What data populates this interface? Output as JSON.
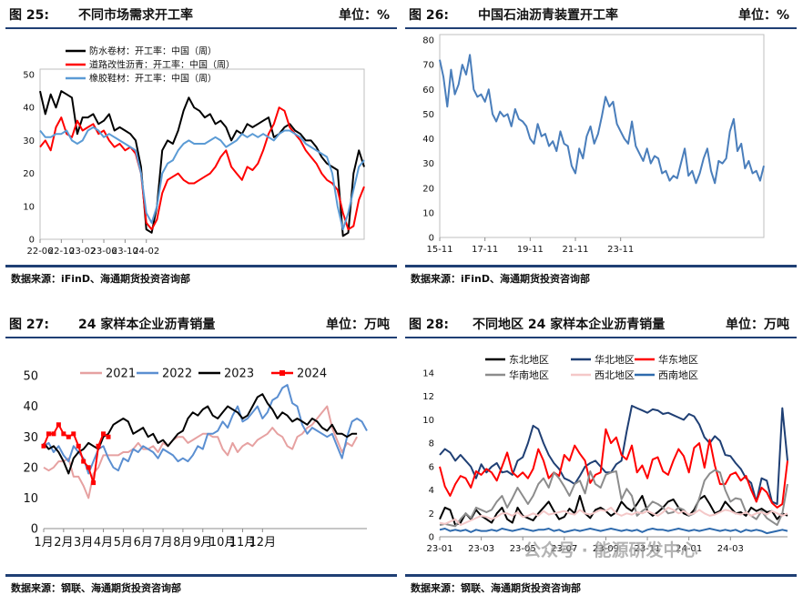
{
  "charts": [
    {
      "fig_no": "图 25:",
      "title": "不同市场需求开工率",
      "unit": "单位：%",
      "source": "数据来源：iFinD、海通期货投资咨询部"
    },
    {
      "fig_no": "图 26:",
      "title": "中国石油沥青装置开工率",
      "unit": "单位：%",
      "source": "数据来源：iFinD、海通期货投资咨询部"
    },
    {
      "fig_no": "图 27:",
      "title": "24 家样本企业沥青销量",
      "unit": "单位：万吨",
      "source": "数据来源：钢联、海通期货投资咨询部"
    },
    {
      "fig_no": "图 28:",
      "title": "不同地区 24 家样本企业沥青销量",
      "unit": "单位：万吨",
      "source": "数据来源：钢联、海通期货投资咨询部"
    }
  ],
  "watermark": "公众号 · 能源研发中心",
  "chart_data": [
    {
      "type": "line",
      "title": "不同市场需求开工率",
      "x_ticks": [
        "22-06",
        "22-10",
        "23-02",
        "23-06",
        "23-10",
        "24-02"
      ],
      "ylim": [
        0,
        50
      ],
      "y_ticks": [
        0,
        10,
        20,
        30,
        40,
        50
      ],
      "legend": "top-left",
      "x_index_per_tick": 4,
      "series": [
        {
          "name": "防水卷材：开工率：中国（周）",
          "color": "#000000",
          "values": [
            45,
            38,
            44,
            40,
            45,
            44,
            43,
            32,
            37,
            37,
            38,
            35,
            36,
            38,
            33,
            34,
            33,
            32,
            30,
            22,
            3,
            2,
            10,
            27,
            30,
            29,
            33,
            39,
            43,
            40,
            39,
            37,
            38,
            35,
            36,
            34,
            30,
            33,
            32,
            35,
            34,
            35,
            36,
            37,
            31,
            32,
            34,
            35,
            33,
            32,
            30,
            30,
            28,
            25,
            23,
            22,
            21,
            1,
            2,
            20,
            27,
            22
          ]
        },
        {
          "name": "道路改性沥青：开工率：中国（周）",
          "color": "#ff0000",
          "values": [
            28,
            30,
            27,
            34,
            37,
            32,
            31,
            36,
            33,
            34,
            35,
            32,
            33,
            30,
            28,
            29,
            27,
            28,
            26,
            20,
            5,
            3,
            6,
            14,
            18,
            19,
            20,
            18,
            17,
            17,
            18,
            19,
            20,
            22,
            25,
            27,
            22,
            20,
            18,
            22,
            21,
            23,
            27,
            32,
            35,
            40,
            39,
            34,
            32,
            30,
            27,
            25,
            23,
            20,
            18,
            17,
            15,
            8,
            3,
            4,
            12,
            16
          ]
        },
        {
          "name": "橡胶鞋材：开工率：中国（周）",
          "color": "#5b9bd5",
          "values": [
            33,
            31,
            31,
            32,
            32,
            33,
            30,
            29,
            30,
            33,
            34,
            33,
            31,
            32,
            31,
            30,
            29,
            28,
            27,
            20,
            8,
            5,
            10,
            20,
            23,
            24,
            27,
            29,
            30,
            29,
            29,
            29,
            30,
            31,
            30,
            28,
            29,
            30,
            32,
            31,
            32,
            31,
            32,
            31,
            30,
            32,
            33,
            33,
            32,
            31,
            29,
            28,
            27,
            26,
            25,
            20,
            10,
            3,
            8,
            15,
            22,
            24
          ]
        }
      ]
    },
    {
      "type": "line",
      "title": "中国石油沥青装置开工率",
      "x_ticks": [
        "15-11",
        "17-11",
        "19-11",
        "21-11",
        "23-11"
      ],
      "ylim": [
        0,
        80
      ],
      "y_ticks": [
        0,
        10,
        20,
        30,
        40,
        50,
        60,
        70,
        80
      ],
      "x_index_per_tick": 12,
      "series": [
        {
          "name": "开工率",
          "color": "#4a7ebb",
          "values": [
            72,
            65,
            53,
            68,
            58,
            62,
            70,
            66,
            74,
            60,
            57,
            58,
            55,
            60,
            50,
            47,
            51,
            49,
            50,
            45,
            52,
            48,
            47,
            45,
            40,
            38,
            46,
            41,
            42,
            37,
            39,
            35,
            43,
            38,
            37,
            29,
            26,
            36,
            32,
            41,
            45,
            38,
            42,
            49,
            57,
            53,
            55,
            46,
            43,
            40,
            38,
            47,
            37,
            34,
            31,
            36,
            30,
            33,
            32,
            26,
            27,
            23,
            25,
            24,
            30,
            36,
            25,
            27,
            22,
            26,
            32,
            36,
            27,
            22,
            31,
            30,
            32,
            43,
            48,
            35,
            38,
            28,
            31,
            26,
            27,
            23,
            29
          ]
        }
      ]
    },
    {
      "type": "line",
      "title": "24 家样本企业沥青销量",
      "x_ticks": [
        "1月",
        "2月",
        "3月",
        "4月",
        "5月",
        "6月",
        "7月",
        "8月",
        "9月",
        "10月",
        "11月",
        "12月"
      ],
      "ylim": [
        0,
        50
      ],
      "y_ticks": [
        0,
        10,
        20,
        30,
        40,
        50
      ],
      "legend": "top",
      "x_index_per_tick": 4,
      "series": [
        {
          "name": "2021",
          "color": "#e6a1a1",
          "values": [
            20,
            19,
            20,
            22,
            22,
            23,
            17,
            17,
            14,
            10,
            18,
            20,
            24,
            24,
            24,
            24,
            25,
            25,
            26,
            28,
            26,
            26,
            27,
            25,
            28,
            27,
            29,
            30,
            30,
            28,
            29,
            30,
            31,
            31,
            30,
            30,
            26,
            24,
            28,
            25,
            27,
            28,
            27,
            29,
            30,
            31,
            33,
            31,
            30,
            27,
            26,
            30,
            31,
            33,
            34,
            36,
            38,
            40,
            33,
            29,
            25,
            28,
            27,
            30
          ]
        },
        {
          "name": "2022",
          "color": "#5b8fd1",
          "values": [
            27,
            28,
            25,
            27,
            24,
            22,
            27,
            25,
            23,
            18,
            22,
            26,
            27,
            23,
            20,
            19,
            23,
            22,
            26,
            25,
            27,
            26,
            25,
            23,
            26,
            25,
            24,
            22,
            23,
            22,
            24,
            27,
            26,
            31,
            31,
            32,
            35,
            33,
            37,
            40,
            35,
            36,
            38,
            40,
            36,
            38,
            42,
            43,
            46,
            47,
            41,
            40,
            34,
            31,
            33,
            32,
            31,
            30,
            31,
            27,
            23,
            30,
            35,
            36,
            35,
            32
          ]
        },
        {
          "name": "2023",
          "color": "#000000",
          "values": [
            28,
            26,
            27,
            25,
            22,
            18,
            23,
            25,
            26,
            28,
            27,
            26,
            30,
            31,
            34,
            35,
            36,
            35,
            31,
            32,
            33,
            30,
            31,
            28,
            29,
            27,
            29,
            31,
            32,
            36,
            38,
            37,
            39,
            40,
            37,
            36,
            38,
            40,
            39,
            38,
            36,
            37,
            40,
            43,
            44,
            41,
            39,
            36,
            38,
            37,
            35,
            36,
            35,
            34,
            36,
            35,
            33,
            32,
            34,
            31,
            31,
            30,
            31,
            31
          ]
        },
        {
          "name": "2024",
          "color": "#ff0000",
          "values": [
            27,
            31,
            31,
            34,
            31,
            30,
            31,
            27,
            22,
            20,
            15,
            27,
            31,
            30
          ]
        }
      ]
    },
    {
      "type": "line",
      "title": "不同地区 24 家样本企业沥青销量",
      "x_ticks": [
        "23-01",
        "23-03",
        "23-05",
        "23-07",
        "23-09",
        "23-11",
        "24-01",
        "24-03"
      ],
      "ylim": [
        0,
        14
      ],
      "y_ticks": [
        0,
        2,
        4,
        6,
        8,
        10,
        12,
        14
      ],
      "legend": "top",
      "x_index_per_tick": 8,
      "series": [
        {
          "name": "东北地区",
          "color": "#000000",
          "values": [
            1.5,
            2.5,
            2.3,
            1,
            1.2,
            2,
            1.5,
            2.3,
            1.8,
            1.5,
            1.2,
            2,
            2.5,
            1.5,
            1.2,
            2.5,
            1.8,
            1.6,
            1.4,
            2,
            2.5,
            3,
            2.2,
            1.5,
            1.7,
            2.4,
            2,
            3.5,
            2,
            1.6,
            2.3,
            2.5,
            2.2,
            1.8,
            2.1,
            3,
            2.5,
            2.2,
            2.8,
            3.5,
            2.2,
            1.8,
            2.1,
            2.5,
            3,
            3.2,
            2.5,
            2,
            1.8,
            2.3,
            3.2,
            3.5,
            2.8,
            2,
            2.2,
            3,
            2.5,
            2,
            2.1,
            1.8,
            2.5,
            2.2,
            2.4,
            2.1,
            2.2,
            1.5,
            2,
            1.8
          ]
        },
        {
          "name": "华北地区",
          "color": "#1f3f74",
          "values": [
            7,
            7.5,
            7.2,
            6.5,
            7,
            6.5,
            6,
            5,
            6.2,
            5.5,
            6,
            6.3,
            5.5,
            5.6,
            5.3,
            6.5,
            6.8,
            8,
            9.5,
            9.2,
            8,
            7,
            6.3,
            5.8,
            5,
            4.8,
            4.5,
            5.2,
            6,
            6.3,
            6.5,
            6,
            5.5,
            5.5,
            6.2,
            6.5,
            9,
            11.2,
            11,
            10.8,
            10.6,
            10.9,
            10.8,
            10.5,
            10.6,
            10.4,
            10.2,
            10,
            10.5,
            10.3,
            9.6,
            8.5,
            8,
            8.6,
            8.2,
            7,
            6.9,
            6.3,
            5.8,
            5,
            4.6,
            3,
            5,
            4.8,
            3,
            2.8,
            11,
            6.5
          ]
        },
        {
          "name": "华东地区",
          "color": "#ff0000",
          "values": [
            6,
            4.3,
            3.5,
            4.5,
            5.2,
            5,
            4.2,
            5.6,
            5.3,
            5.8,
            5.5,
            4.8,
            6,
            7.2,
            5.5,
            5.1,
            5.5,
            5,
            5.8,
            7.5,
            6.5,
            5,
            5.5,
            5.2,
            7,
            6.5,
            7.8,
            7.1,
            6.5,
            4.6,
            5.3,
            5.5,
            9.2,
            8,
            8.5,
            7,
            6.6,
            7.8,
            5.5,
            6.1,
            5,
            6.6,
            6.8,
            5.6,
            5.3,
            6.5,
            7.5,
            6.9,
            5.5,
            7.6,
            8,
            5.9,
            8.3,
            6.1,
            4.5,
            4.5,
            5.3,
            5.5,
            4.8,
            5.2,
            4,
            3,
            4.2,
            3.8,
            2.9,
            2.5,
            2.8,
            6.5
          ]
        },
        {
          "name": "华南地区",
          "color": "#8c8c8c",
          "values": [
            1,
            1.1,
            1,
            0.9,
            1.5,
            2,
            1.6,
            2.5,
            2.3,
            2.1,
            2.3,
            3,
            3.5,
            2.5,
            3.3,
            4.2,
            3.5,
            2.8,
            3.5,
            4.5,
            5,
            4.2,
            5.5,
            5,
            4.3,
            3.5,
            4.5,
            4.8,
            3.7,
            5.6,
            4.5,
            4.2,
            5.3,
            5.5,
            5.6,
            3.2,
            4.1,
            3.5,
            1.8,
            2.2,
            2.5,
            3,
            2.8,
            2.5,
            2,
            2.1,
            2.5,
            2.3,
            1.8,
            2,
            3.3,
            4.8,
            5.4,
            5.7,
            5.5,
            4,
            3,
            3.3,
            3.2,
            2.1,
            1.8,
            1.5,
            2.2,
            1.6,
            1.3,
            1,
            2,
            4.5
          ]
        },
        {
          "name": "西北地区",
          "color": "#f4c8c8",
          "values": [
            1.2,
            1.1,
            1.3,
            1.5,
            1,
            1.2,
            1.4,
            1.6,
            1.8,
            1.7,
            1.5,
            1.7,
            2,
            2,
            1.8,
            2.1,
            1.7,
            1.8,
            2,
            1.8,
            2.2,
            1.9,
            2,
            2.1,
            2.2,
            2,
            1.9,
            2.3,
            2,
            1.9,
            2.1,
            2.3,
            2.2,
            2.5,
            2,
            1.8,
            2,
            1.9,
            2.1,
            2,
            2.2,
            2,
            1.8,
            2.1,
            2.5,
            2.3,
            2,
            2.2,
            1.9,
            2,
            2.3,
            2,
            1.8,
            1.9,
            2.1,
            2.3,
            2.2,
            2,
            1.9,
            2.1,
            1.8,
            2,
            2.1,
            1.9,
            2.2,
            2,
            1.8,
            2
          ]
        },
        {
          "name": "西南地区",
          "color": "#2e6aad",
          "values": [
            0.6,
            0.7,
            0.5,
            0.6,
            0.5,
            0.6,
            0.4,
            0.6,
            0.5,
            0.5,
            0.6,
            0.5,
            0.7,
            0.6,
            0.5,
            0.6,
            0.7,
            0.6,
            0.5,
            0.6,
            0.6,
            0.7,
            0.5,
            0.6,
            0.4,
            0.5,
            0.6,
            0.5,
            0.6,
            0.7,
            0.6,
            0.5,
            0.6,
            0.7,
            0.6,
            0.5,
            0.6,
            0.5,
            0.6,
            0.4,
            0.6,
            0.7,
            0.6,
            0.6,
            0.5,
            0.6,
            0.7,
            0.6,
            0.5,
            0.6,
            0.5,
            0.6,
            0.7,
            0.6,
            0.5,
            0.6,
            0.5,
            0.6,
            0.4,
            0.6,
            0.5,
            0.6,
            0.5,
            0.3,
            0.4,
            0.5,
            0.6,
            0.5
          ]
        }
      ]
    }
  ]
}
